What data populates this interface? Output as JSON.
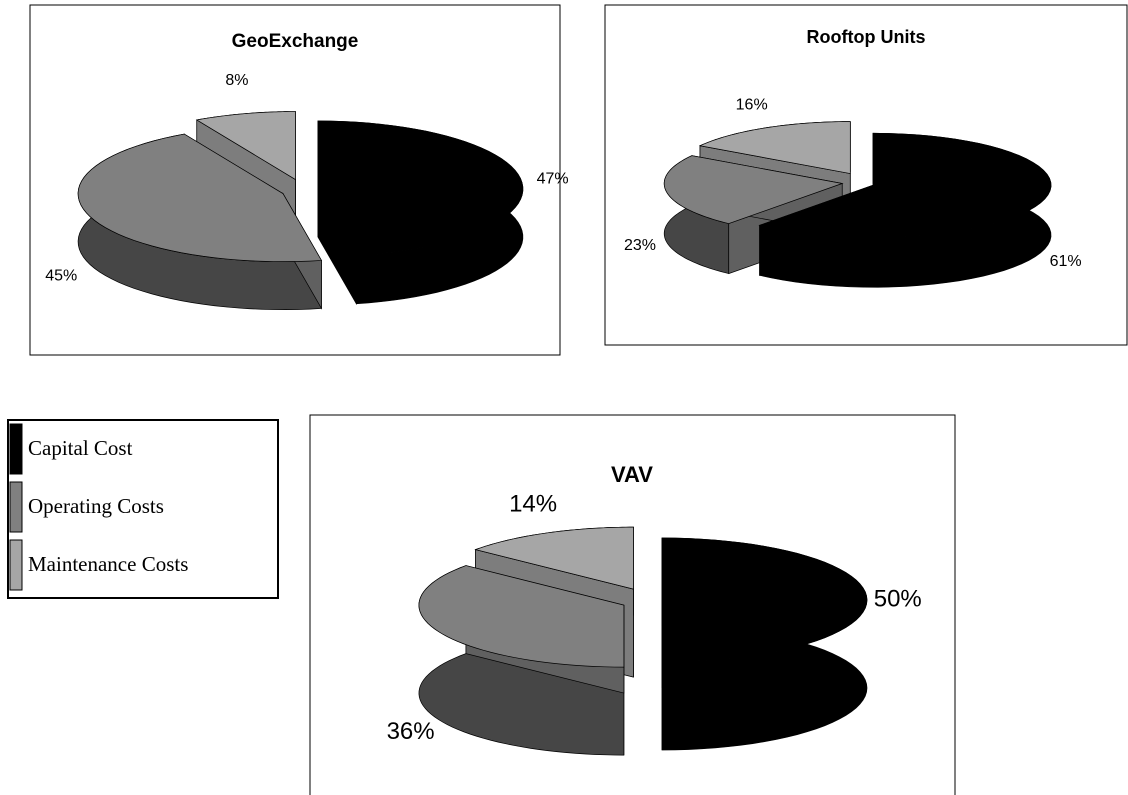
{
  "legend": {
    "categories": [
      "Capital Cost",
      "Operating Costs",
      "Maintenance Costs"
    ],
    "colors": [
      "#000000",
      "#808080",
      "#a6a6a6"
    ]
  },
  "chart_data": [
    {
      "type": "pie",
      "title": "GeoExchange",
      "values": [
        47,
        45,
        8
      ],
      "value_labels": [
        "47%",
        "45%",
        "8%"
      ]
    },
    {
      "type": "pie",
      "title": "Rooftop Units",
      "values": [
        61,
        23,
        16
      ],
      "value_labels": [
        "61%",
        "23%",
        "16%"
      ]
    },
    {
      "type": "pie",
      "title": "VAV",
      "values": [
        50,
        36,
        14
      ],
      "value_labels": [
        "50%",
        "36%",
        "14%"
      ]
    }
  ]
}
